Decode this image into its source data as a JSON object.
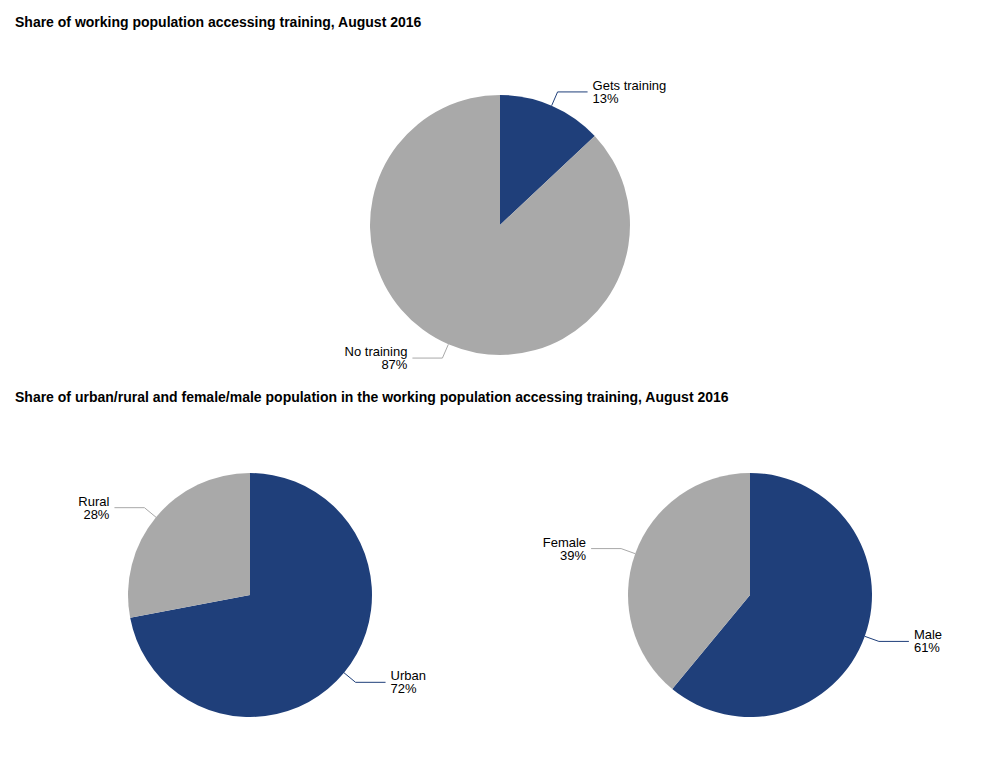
{
  "chart_data": [
    {
      "type": "pie",
      "title": "Share of working population accessing training, August 2016",
      "categories": [
        "Gets training",
        "No training"
      ],
      "values": [
        13,
        87
      ],
      "value_labels": [
        "13%",
        "87%"
      ],
      "colors": [
        "#1F3F7A",
        "#A9A9A9"
      ],
      "data_labels": true
    },
    {
      "type": "pie",
      "title": "Share of urban/rural and female/male population in the working population accessing training, August 2016",
      "categories": [
        "Urban",
        "Rural"
      ],
      "values": [
        72,
        28
      ],
      "value_labels": [
        "72%",
        "28%"
      ],
      "colors": [
        "#1F3F7A",
        "#A9A9A9"
      ],
      "data_labels": true
    },
    {
      "type": "pie",
      "categories": [
        "Male",
        "Female"
      ],
      "values": [
        61,
        39
      ],
      "value_labels": [
        "61%",
        "39%"
      ],
      "colors": [
        "#1F3F7A",
        "#A9A9A9"
      ],
      "data_labels": true
    }
  ]
}
